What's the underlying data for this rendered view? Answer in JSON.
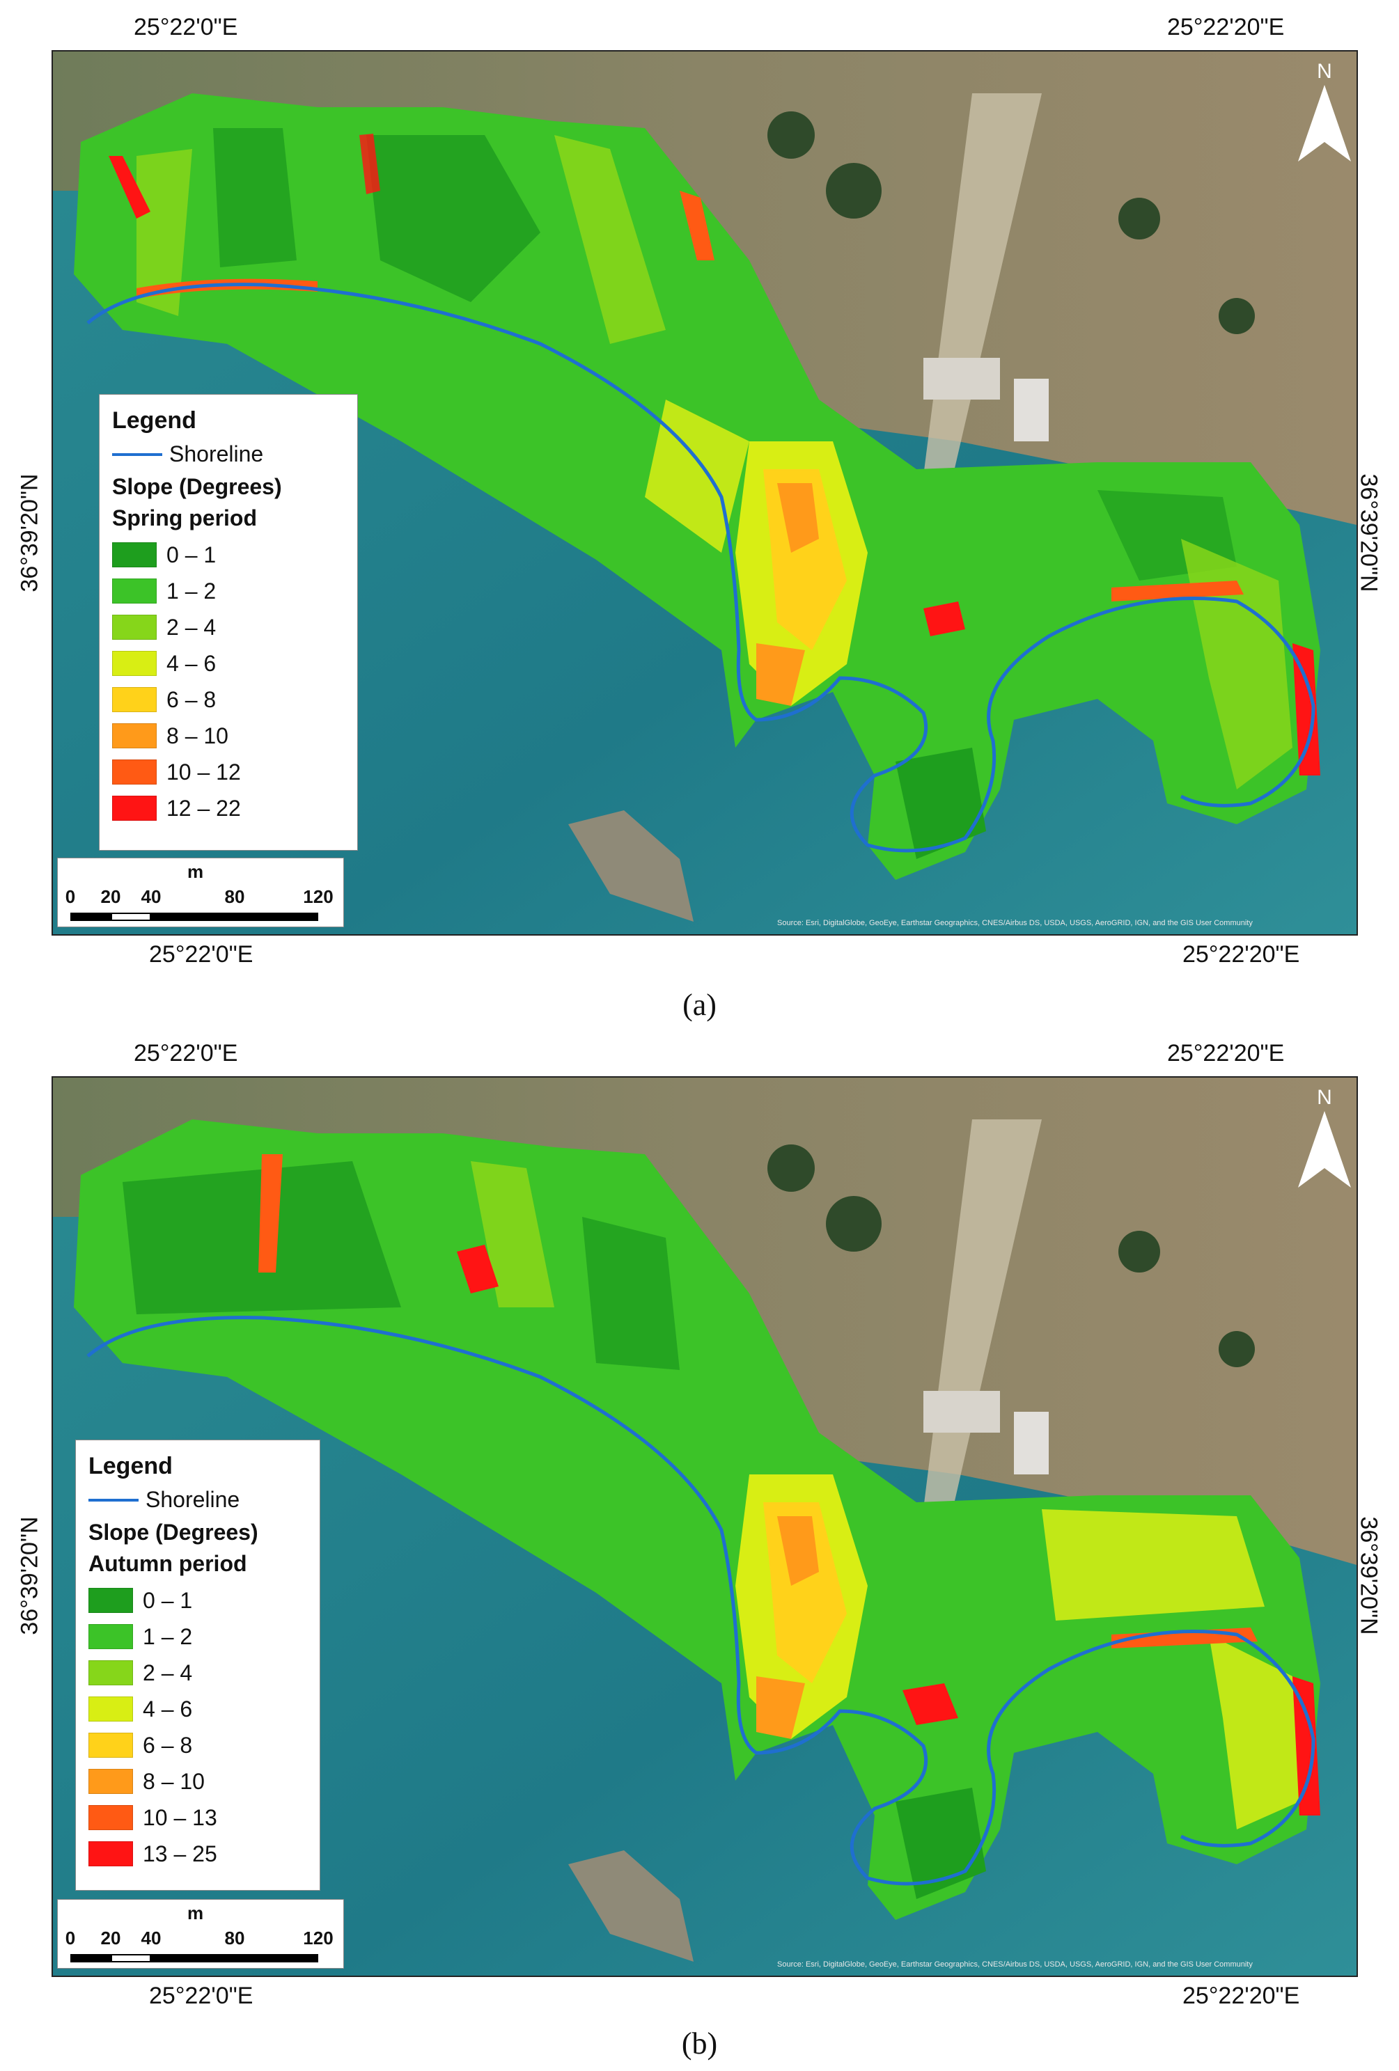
{
  "panels": [
    {
      "id": "a",
      "caption": "(a)",
      "lon_top_left": "25°22'0\"E",
      "lon_top_right": "25°22'20\"E",
      "lon_bottom_left": "25°22'0\"E",
      "lon_bottom_right": "25°22'20\"E",
      "lat_left": "36°39'20\"N",
      "lat_right": "36°39'20\"N",
      "north_letter": "N",
      "legend": {
        "title": "Legend",
        "shoreline_label": "Shoreline",
        "slope_label": "Slope (Degrees)",
        "period_label": "Spring period",
        "classes": [
          {
            "label": "0 – 1",
            "color": "#1e9e1e"
          },
          {
            "label": "1 – 2",
            "color": "#3cc328"
          },
          {
            "label": "2 – 4",
            "color": "#86d61a"
          },
          {
            "label": "4 – 6",
            "color": "#d8ee14"
          },
          {
            "label": "6 – 8",
            "color": "#ffd21a"
          },
          {
            "label": "8 – 10",
            "color": "#ff9a1a"
          },
          {
            "label": "10 – 12",
            "color": "#ff5a14"
          },
          {
            "label": "12 – 22",
            "color": "#ff1414"
          }
        ]
      },
      "scale": {
        "unit": "m",
        "ticks": [
          "0",
          "20",
          "40",
          "80",
          "120"
        ]
      },
      "attribution": "Source: Esri, DigitalGlobe, GeoEye, Earthstar Geographics, CNES/Airbus DS, USDA, USGS, AeroGRID, IGN, and the GIS User Community"
    },
    {
      "id": "b",
      "caption": "(b)",
      "lon_top_left": "25°22'0\"E",
      "lon_top_right": "25°22'20\"E",
      "lon_bottom_left": "25°22'0\"E",
      "lon_bottom_right": "25°22'20\"E",
      "lat_left": "36°39'20\"N",
      "lat_right": "36°39'20\"N",
      "north_letter": "N",
      "legend": {
        "title": "Legend",
        "shoreline_label": "Shoreline",
        "slope_label": "Slope (Degrees)",
        "period_label": "Autumn period",
        "classes": [
          {
            "label": "0 – 1",
            "color": "#1e9e1e"
          },
          {
            "label": "1 – 2",
            "color": "#3cc328"
          },
          {
            "label": "2 – 4",
            "color": "#86d61a"
          },
          {
            "label": "4 – 6",
            "color": "#d8ee14"
          },
          {
            "label": "6 – 8",
            "color": "#ffd21a"
          },
          {
            "label": "8 – 10",
            "color": "#ff9a1a"
          },
          {
            "label": "10 – 13",
            "color": "#ff5a14"
          },
          {
            "label": "13 – 25",
            "color": "#ff1414"
          }
        ]
      },
      "scale": {
        "unit": "m",
        "ticks": [
          "0",
          "20",
          "40",
          "80",
          "120"
        ]
      },
      "attribution": "Source: Esri, DigitalGlobe, GeoEye, Earthstar Geographics, CNES/Airbus DS, USDA, USGS, AeroGRID, IGN, and the GIS User Community"
    }
  ]
}
